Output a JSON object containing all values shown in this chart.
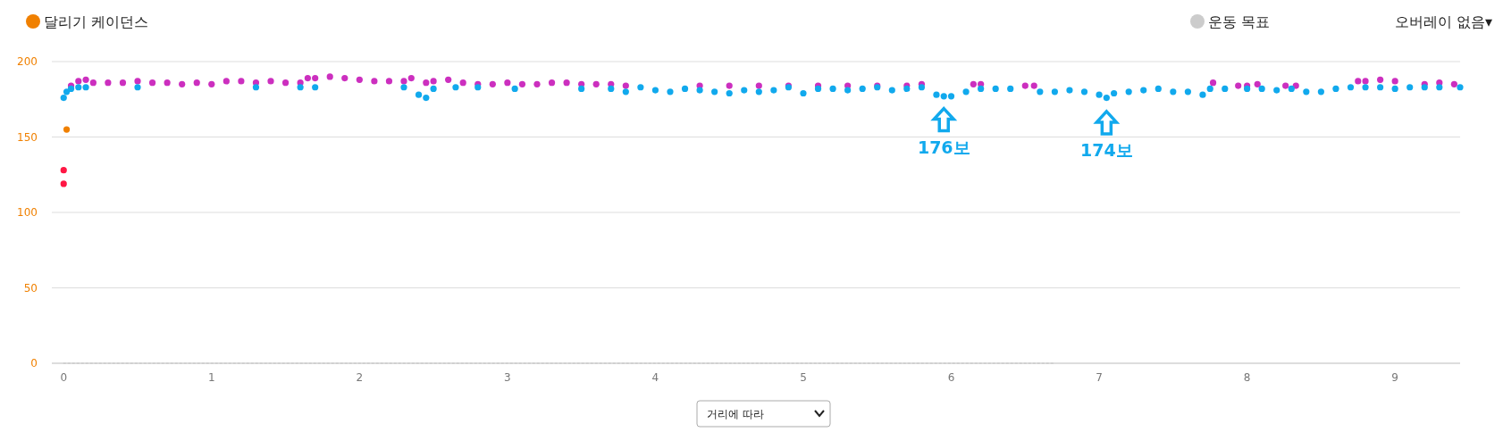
{
  "chart_data": {
    "type": "scatter",
    "marker": "circle",
    "grid": "y",
    "legend": "top",
    "xlim": [
      -0.08,
      9.44
    ],
    "xticks": [
      0,
      1,
      2,
      3,
      4,
      5,
      6,
      7,
      8,
      9
    ],
    "ylim": [
      0,
      200
    ],
    "yticks": [
      0,
      50,
      100,
      150,
      200
    ],
    "series": [
      {
        "name": "달리기 케이던스",
        "color": "#f08000",
        "x": [
          0.02
        ],
        "values": [
          155
        ]
      },
      {
        "color": "#ff1744",
        "x": [
          0.0,
          0.0
        ],
        "values": [
          128,
          119
        ]
      },
      {
        "color": "#cc2fbf",
        "x": [
          0.05,
          0.1,
          0.15,
          0.2,
          0.3,
          0.4,
          0.5,
          0.6,
          0.7,
          0.8,
          0.9,
          1.0,
          1.1,
          1.2,
          1.3,
          1.4,
          1.5,
          1.6,
          1.65,
          1.7,
          1.8,
          1.9,
          2.0,
          2.1,
          2.2,
          2.3,
          2.35,
          2.45,
          2.5,
          2.6,
          2.7,
          2.8,
          2.9,
          3.0,
          3.1,
          3.2,
          3.3,
          3.4,
          3.5,
          3.6,
          3.7,
          3.8,
          4.3,
          4.5,
          4.7,
          4.9,
          5.1,
          5.3,
          5.5,
          5.7,
          5.8,
          6.15,
          6.2,
          6.5,
          6.56,
          7.77,
          7.94,
          8.0,
          8.07,
          8.26,
          8.33,
          8.75,
          8.8,
          8.9,
          9.0,
          9.2,
          9.3,
          9.4
        ],
        "values": [
          184,
          187,
          188,
          186,
          186,
          186,
          187,
          186,
          186,
          185,
          186,
          185,
          187,
          187,
          186,
          187,
          186,
          186,
          189,
          189,
          190,
          189,
          188,
          187,
          187,
          187,
          189,
          186,
          187,
          188,
          186,
          185,
          185,
          186,
          185,
          185,
          186,
          186,
          185,
          185,
          185,
          184,
          184,
          184,
          184,
          184,
          184,
          184,
          184,
          184,
          185,
          185,
          185,
          184,
          184,
          186,
          184,
          184,
          185,
          184,
          184,
          187,
          187,
          188,
          187,
          185,
          186,
          185
        ]
      },
      {
        "color": "#11a9ed",
        "x": [
          0.0,
          0.02,
          0.05,
          0.1,
          0.15,
          0.5,
          1.3,
          1.6,
          1.7,
          2.3,
          2.4,
          2.45,
          2.5,
          2.65,
          2.8,
          3.05,
          3.5,
          3.7,
          3.8,
          3.9,
          4.0,
          4.1,
          4.2,
          4.3,
          4.4,
          4.5,
          4.6,
          4.7,
          4.8,
          4.9,
          5.0,
          5.1,
          5.2,
          5.3,
          5.4,
          5.5,
          5.6,
          5.7,
          5.8,
          5.9,
          5.95,
          6.0,
          6.1,
          6.2,
          6.3,
          6.4,
          6.6,
          6.7,
          6.8,
          6.9,
          7.0,
          7.05,
          7.1,
          7.2,
          7.3,
          7.4,
          7.5,
          7.6,
          7.7,
          7.75,
          7.85,
          8.0,
          8.1,
          8.2,
          8.3,
          8.4,
          8.5,
          8.6,
          8.7,
          8.8,
          8.9,
          9.0,
          9.1,
          9.2,
          9.3,
          9.44
        ],
        "values": [
          176,
          180,
          182,
          183,
          183,
          183,
          183,
          183,
          183,
          183,
          178,
          176,
          182,
          183,
          183,
          182,
          182,
          182,
          180,
          183,
          181,
          180,
          182,
          181,
          180,
          179,
          181,
          180,
          181,
          183,
          179,
          182,
          182,
          181,
          182,
          183,
          181,
          182,
          183,
          178,
          177,
          177,
          180,
          182,
          182,
          182,
          180,
          180,
          181,
          180,
          178,
          176,
          179,
          180,
          181,
          182,
          180,
          180,
          178,
          182,
          182,
          182,
          182,
          181,
          182,
          180,
          180,
          182,
          183,
          183,
          183,
          182,
          183,
          183,
          183,
          183
        ]
      },
      {
        "name": "운동 목표",
        "type": "line",
        "marker": "none",
        "line_style": "dotted",
        "color": "#cccccc",
        "x": [
          0,
          6.7
        ],
        "values": [
          0,
          0
        ]
      }
    ],
    "annotations": [
      {
        "text": "176보",
        "x": 5.95,
        "y": 176
      },
      {
        "text": "174보",
        "x": 7.05,
        "y": 174
      },
      "오버레이 없음▾",
      "거리에 따라"
    ]
  }
}
